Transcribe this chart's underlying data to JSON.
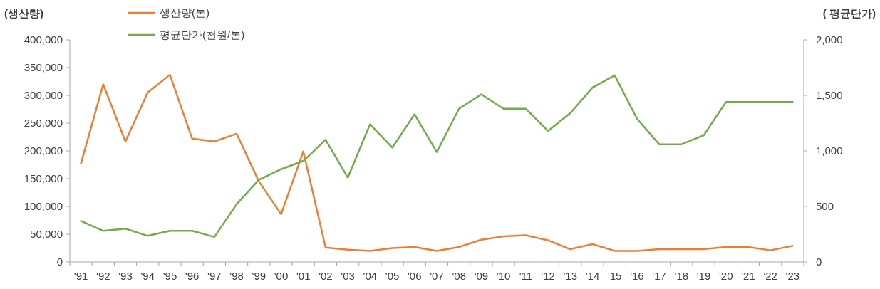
{
  "chart_data": {
    "type": "line",
    "ylabel": "(생산량)",
    "y2label": "( 평균단가)",
    "categories": [
      "'91",
      "'92",
      "'93",
      "'94",
      "'95",
      "'96",
      "'97",
      "'98",
      "'99",
      "'00",
      "'01",
      "'02",
      "'03",
      "'04",
      "'05",
      "'06",
      "'07",
      "'08",
      "'09",
      "'10",
      "'11",
      "'12",
      "'13",
      "'14",
      "'15",
      "'16",
      "'17",
      "'18",
      "'19",
      "'20",
      "'21",
      "'22",
      "'23"
    ],
    "series": [
      {
        "name": "생산량(톤)",
        "color": "#ed7d31",
        "values": [
          177000,
          320000,
          217000,
          305000,
          337000,
          222000,
          217000,
          231000,
          145000,
          86000,
          199000,
          26000,
          22000,
          20000,
          25000,
          27000,
          20000,
          27000,
          40000,
          46000,
          48000,
          39000,
          23000,
          32000,
          20000,
          20000,
          23000,
          23000,
          23000,
          27000,
          27000,
          21000,
          29000
        ]
      },
      {
        "name": "평균단가(천원/톤)",
        "color": "#70ad47",
        "axis": "y2",
        "values": [
          370,
          280,
          300,
          235,
          280,
          280,
          225,
          520,
          740,
          835,
          910,
          1100,
          760,
          1240,
          1030,
          1330,
          990,
          1380,
          1510,
          1380,
          1380,
          1180,
          1340,
          1570,
          1680,
          1290,
          1060,
          1060,
          1140,
          1440,
          1440,
          1440,
          1440
        ]
      }
    ],
    "ylim": [
      0,
      400000
    ],
    "yticks": [
      0,
      {
        "value": 50000,
        "label": "50,000"
      },
      {
        "value": 100000,
        "label": "100,000"
      },
      {
        "value": 150000,
        "label": "150,000"
      },
      {
        "value": 200000,
        "label": "200,000"
      },
      {
        "value": 250000,
        "label": "250,000"
      },
      {
        "value": 300000,
        "label": "300,000"
      },
      {
        "value": 350000,
        "label": "350,000"
      },
      {
        "value": 400000,
        "label": "400,000"
      }
    ],
    "y2lim": [
      0,
      2000
    ],
    "y2ticks": [
      0,
      500,
      {
        "value": 1000,
        "label": "1,000"
      },
      {
        "value": 1500,
        "label": "1,500"
      },
      {
        "value": 2000,
        "label": "2,000"
      }
    ],
    "legend": "top left"
  }
}
